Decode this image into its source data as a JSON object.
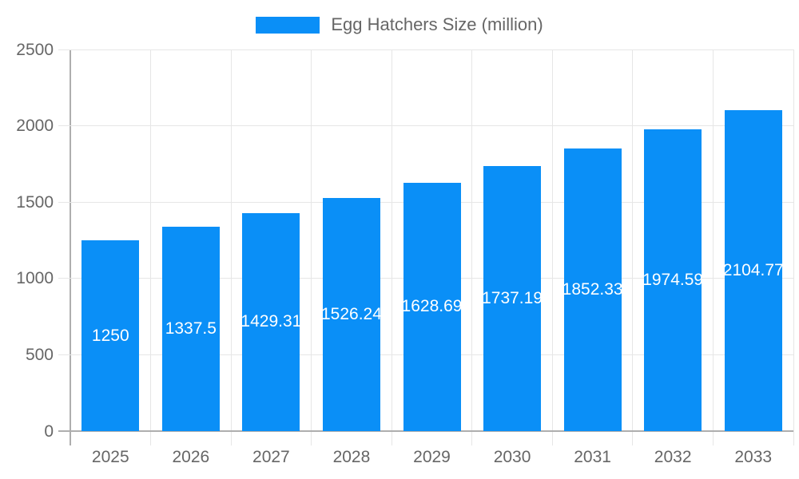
{
  "chart_data": {
    "type": "bar",
    "title": "",
    "legend": "Egg Hatchers Size (million)",
    "legend_position": "top",
    "categories": [
      "2025",
      "2026",
      "2027",
      "2028",
      "2029",
      "2030",
      "2031",
      "2032",
      "2033"
    ],
    "values": [
      1250,
      1337.5,
      1429.31,
      1526.24,
      1628.69,
      1737.19,
      1852.33,
      1974.59,
      2104.77
    ],
    "value_labels": [
      "1250",
      "1337.5",
      "1429.31",
      "1526.24",
      "1628.69",
      "1737.19",
      "1852.33",
      "1974.59",
      "2104.77"
    ],
    "xlabel": "",
    "ylabel": "",
    "ylim": [
      0,
      2500
    ],
    "yticks": [
      0,
      500,
      1000,
      1500,
      2000,
      2500
    ],
    "ytick_labels": [
      "0",
      "500",
      "1000",
      "1500",
      "2000",
      "2500"
    ],
    "grid": true
  },
  "style": {
    "bar_color": "#0a8ff7",
    "grid_color": "#e6e6e6",
    "axis_line_color": "#aeaeae",
    "tick_text_color": "#666666",
    "legend_text_color": "#666666",
    "bar_label_color": "#ffffff",
    "background": "#ffffff"
  }
}
